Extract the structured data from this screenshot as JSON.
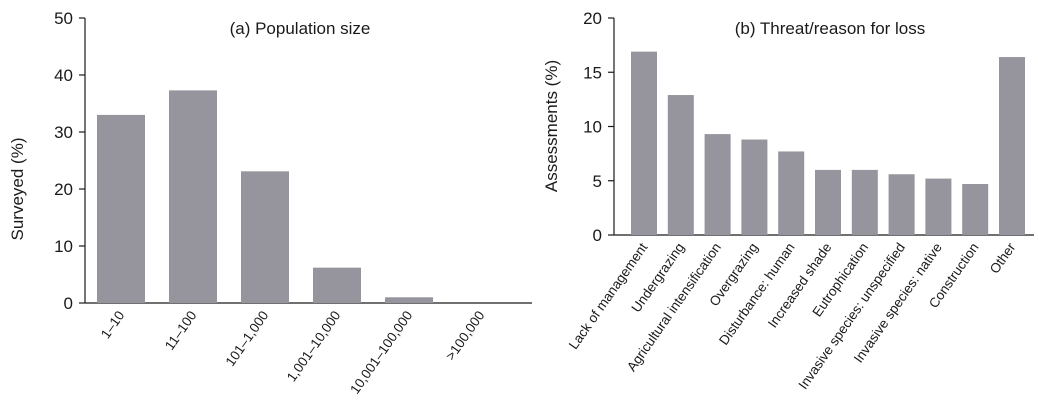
{
  "colors": {
    "bar": "#96949c",
    "axis": "#1a1a1a"
  },
  "chart_data": [
    {
      "type": "bar",
      "title": "(a) Population size",
      "xlabel": "",
      "ylabel": "Surveyed (%)",
      "ylim": [
        0,
        50
      ],
      "yticks": [
        0,
        10,
        20,
        30,
        40,
        50
      ],
      "grid": false,
      "categories": [
        "1–10",
        "11–100",
        "101–1,000",
        "1,001–10,000",
        "10,001–100,000",
        ">100,000"
      ],
      "values": [
        33,
        37.3,
        23.1,
        6.2,
        1.0,
        0
      ]
    },
    {
      "type": "bar",
      "title": "(b) Threat/reason for loss",
      "xlabel": "",
      "ylabel": "Assessments (%)",
      "ylim": [
        0,
        20
      ],
      "yticks": [
        0,
        5,
        10,
        15,
        20
      ],
      "grid": false,
      "categories": [
        "Lack of management",
        "Undergrazing",
        "Agricultural intensification",
        "Overgrazing",
        "Disturbance: human",
        "Increased shade",
        "Eutrophication",
        "Invasive species: unspecified",
        "Invasive species: native",
        "Construction",
        "Other"
      ],
      "values": [
        16.9,
        12.9,
        9.3,
        8.8,
        7.7,
        6.0,
        6.0,
        5.6,
        5.2,
        4.7,
        16.4
      ]
    }
  ]
}
